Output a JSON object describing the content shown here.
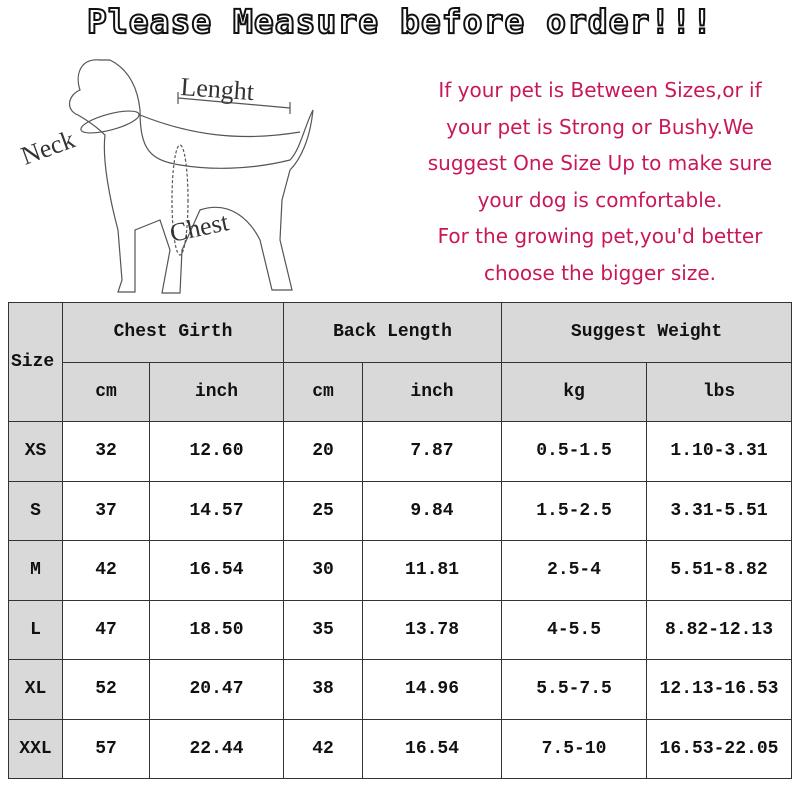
{
  "title": "Please Measure before order!!!",
  "diagram": {
    "labels": {
      "length": "Lenght",
      "neck": "Neck",
      "chest": "Chest"
    }
  },
  "note": {
    "lines": [
      "If your pet is Between Sizes,or if",
      "your pet is Strong or Bushy.We",
      "suggest One Size Up to make sure",
      "your dog is comfortable.",
      "For the growing pet,you'd better",
      "choose the bigger size."
    ],
    "color": "#c8185a"
  },
  "table": {
    "size_header": "Size",
    "groups": [
      "Chest Girth",
      "Back Length",
      "Suggest Weight"
    ],
    "units": [
      "cm",
      "inch",
      "cm",
      "inch",
      "kg",
      "lbs"
    ],
    "rows": [
      [
        "XS",
        "32",
        "12.60",
        "20",
        "7.87",
        "0.5-1.5",
        "1.10-3.31"
      ],
      [
        "S",
        "37",
        "14.57",
        "25",
        "9.84",
        "1.5-2.5",
        "3.31-5.51"
      ],
      [
        "M",
        "42",
        "16.54",
        "30",
        "11.81",
        "2.5-4",
        "5.51-8.82"
      ],
      [
        "L",
        "47",
        "18.50",
        "35",
        "13.78",
        "4-5.5",
        "8.82-12.13"
      ],
      [
        "XL",
        "52",
        "20.47",
        "38",
        "14.96",
        "5.5-7.5",
        "12.13-16.53"
      ],
      [
        "XXL",
        "57",
        "22.44",
        "42",
        "16.54",
        "7.5-10",
        "16.53-22.05"
      ]
    ]
  }
}
